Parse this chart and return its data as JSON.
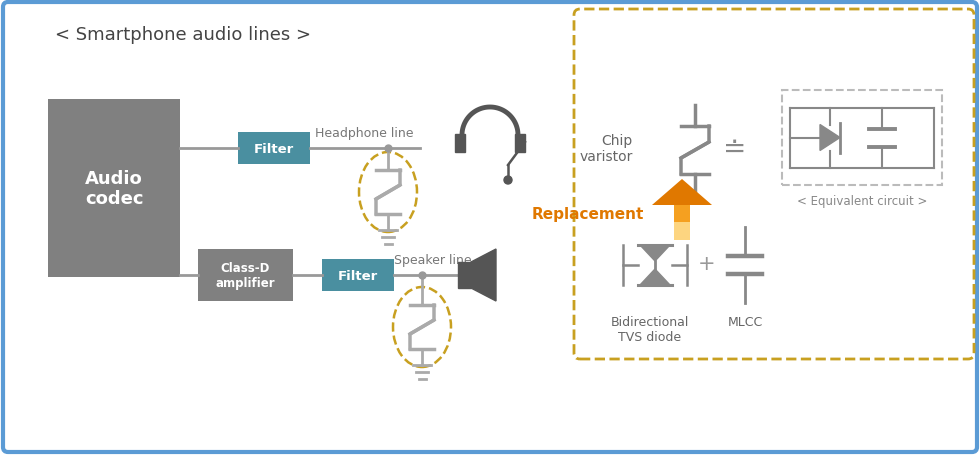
{
  "bg_color": "#ffffff",
  "border_color": "#5b9bd5",
  "title": "< Smartphone audio lines >",
  "title_color": "#444444",
  "title_fontsize": 13,
  "audio_codec_color": "#808080",
  "audio_codec_text": "Audio\ncodec",
  "filter_color": "#4a8fa0",
  "filter_text": "Filter",
  "class_d_color": "#808080",
  "class_d_text": "Class-D\namplifier",
  "headphone_line_text": "Headphone line",
  "speaker_line_text": "Speaker line",
  "line_color": "#999999",
  "varistor_color": "#aaaaaa",
  "dashed_box_color": "#c8a020",
  "chip_varistor_text": "Chip\nvaristor",
  "equivalent_circuit_text": "< Equivalent circuit >",
  "replacement_text": "Replacement",
  "replacement_color": "#e07800",
  "bidirectional_text": "Bidirectional\nTVS diode",
  "mlcc_text": "MLCC",
  "symbol_color": "#888888"
}
